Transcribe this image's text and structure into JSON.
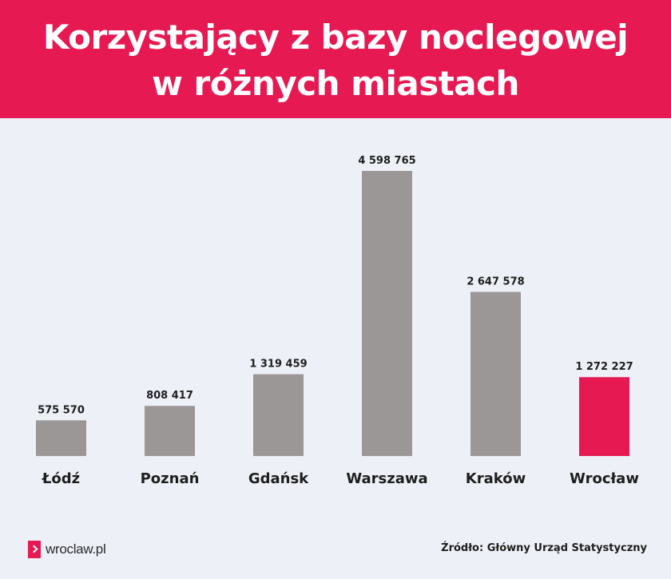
{
  "header": {
    "title_line1": "Korzystający z bazy noclegowej",
    "title_line2": "w różnych miastach",
    "background_color": "#e61953"
  },
  "chart_data": {
    "type": "bar",
    "categories": [
      "Łódź",
      "Poznań",
      "Gdańsk",
      "Warszawa",
      "Kraków",
      "Wrocław"
    ],
    "values": [
      575570,
      808417,
      1319459,
      4598765,
      2647578,
      1272227
    ],
    "value_labels": [
      "575 570",
      "808 417",
      "1 319 459",
      "4 598 765",
      "2 647 578",
      "1 272 227"
    ],
    "bar_colors": [
      "#9c9797",
      "#9c9797",
      "#9c9797",
      "#9c9797",
      "#9c9797",
      "#e61953"
    ],
    "ylim": [
      0,
      5000000
    ],
    "grid": false,
    "legend": "none"
  },
  "footer": {
    "logo_text": "wroclaw.pl",
    "source": "Źródło: Główny Urząd Statystyczny"
  }
}
